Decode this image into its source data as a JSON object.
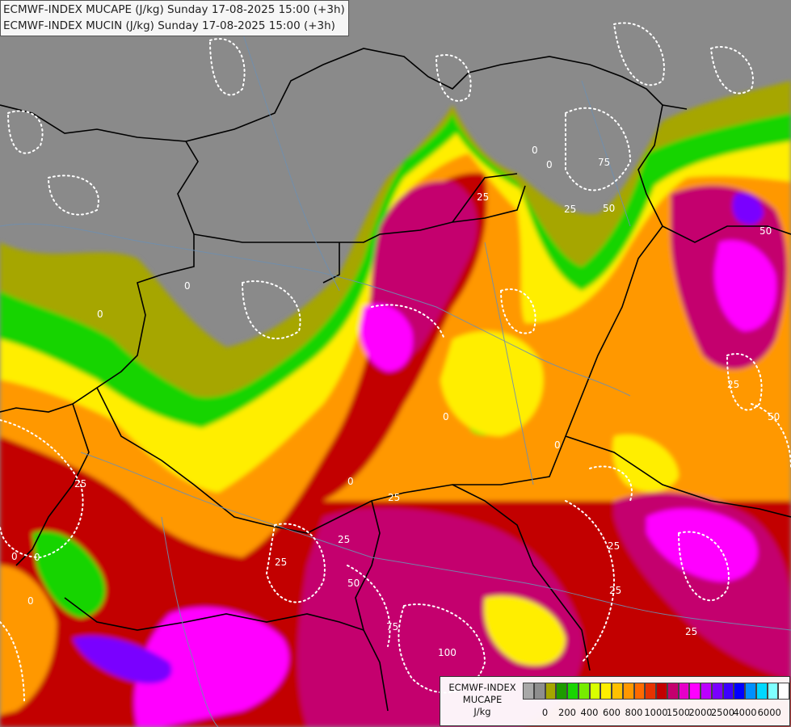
{
  "header": {
    "line1": "ECMWF-INDEX MUCAPE (J/kg) Sunday 17-08-2025 15:00 (+3h)",
    "line2": "ECMWF-INDEX MUCIN (J/kg) Sunday 17-08-2025 15:00 (+3h)"
  },
  "legend": {
    "title_line1": "ECMWF-INDEX",
    "title_line2": "MUCAPE",
    "title_line3": "J/kg",
    "colors": [
      "#a8a8a8",
      "#8e8e8e",
      "#a6a600",
      "#1d9a00",
      "#19d400",
      "#77ec00",
      "#d8ff00",
      "#ffee00",
      "#ffc000",
      "#ff9800",
      "#ff6a00",
      "#e63300",
      "#c20000",
      "#c4006e",
      "#e600c8",
      "#ff00ff",
      "#bc00ff",
      "#7a00ff",
      "#3c00ff",
      "#0000ff",
      "#0090ff",
      "#00d8ff",
      "#7fffff",
      "#ffffff"
    ],
    "tick_labels": [
      "0",
      "200",
      "400",
      "600",
      "800",
      "1000",
      "1500",
      "2000",
      "2500",
      "4000",
      "6000"
    ]
  },
  "contour_labels": [
    "0",
    "0",
    "0",
    "0",
    "0",
    "0",
    "0",
    "0",
    "0",
    "0",
    "25",
    "25",
    "25",
    "25",
    "25",
    "25",
    "25",
    "25",
    "25",
    "25",
    "50",
    "50",
    "50",
    "50",
    "75",
    "75",
    "100"
  ],
  "map_colors": {
    "no_data_gray": "#8a8a8a",
    "olive": "#a6a600",
    "green": "#19d400",
    "yellow": "#ffee00",
    "orange": "#ff9800",
    "red": "#c20000",
    "magenta": "#e600c8",
    "pink": "#ff00ff",
    "violet": "#7a00ff",
    "border": "#000000",
    "rivers": "#6e8fb0",
    "cin_contour": "#ffffff"
  }
}
